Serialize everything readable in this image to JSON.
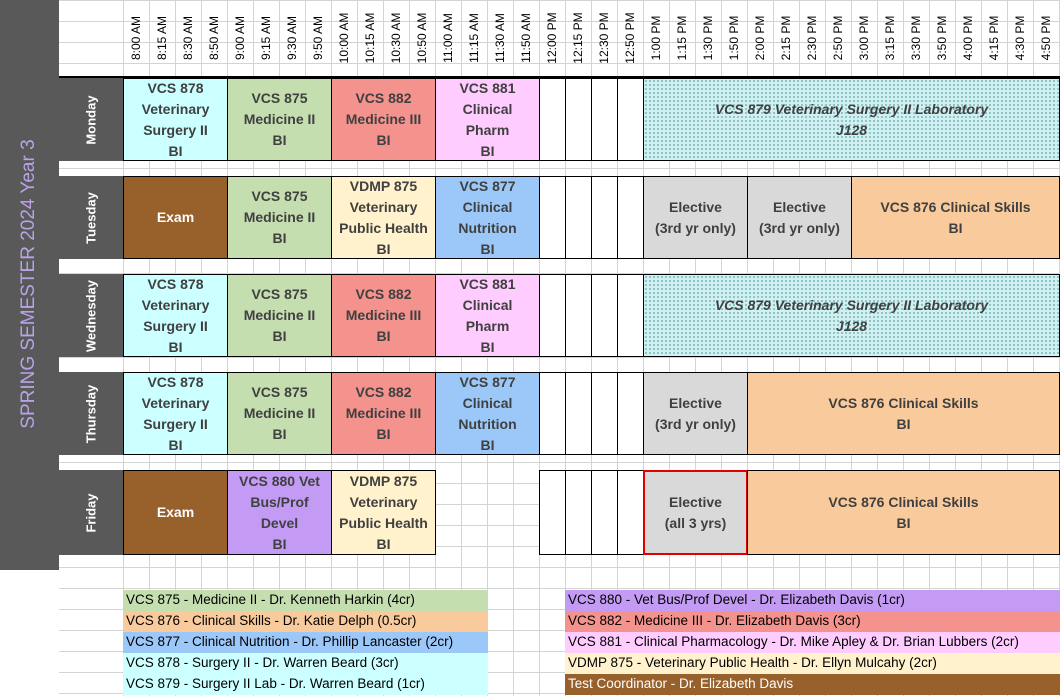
{
  "semester_title": "SPRING SEMESTER 2024 Year 3",
  "times": [
    "8:00 AM",
    "8:15 AM",
    "8:30 AM",
    "8:50 AM",
    "9:00 AM",
    "9:15 AM",
    "9:30 AM",
    "9:50 AM",
    "10:00 AM",
    "10:15 AM",
    "10:30 AM",
    "10:50 AM",
    "11:00 AM",
    "11:15 AM",
    "11:30 AM",
    "11:50 AM",
    "12:00 PM",
    "12:15 PM",
    "12:30 PM",
    "12:50 PM",
    "1:00 PM",
    "1:15 PM",
    "1:30 PM",
    "1:50 PM",
    "2:00 PM",
    "2:15 PM",
    "2:30 PM",
    "2:50 PM",
    "3:00 PM",
    "3:15 PM",
    "3:30 PM",
    "3:50 PM",
    "4:00 PM",
    "4:15 PM",
    "4:30 PM",
    "4:50 PM"
  ],
  "days": [
    "Monday",
    "Tuesday",
    "Wednesday",
    "Thursday",
    "Friday"
  ],
  "colors": {
    "surgery": "#ccffff",
    "medicine2": "#c4deb0",
    "medicine3": "#f4928d",
    "pharm": "#ffccff",
    "nutrition": "#9bc8f8",
    "exam": "#98602b",
    "publichealth": "#fff2cc",
    "elective": "#d9d9d9",
    "clinical": "#f9cb9c",
    "lab": "#d0f0f2",
    "vetbus": "#c39bf4"
  },
  "schedule": {
    "monday": {
      "c1": "VCS 878\nVeterinary\nSurgery II\nBI",
      "c2": "VCS 875\nMedicine II\nBI",
      "c3": "VCS 882\nMedicine III\nBI",
      "c4": "VCS 881\nClinical\nPharm\nBI",
      "lab": "VCS 879 Veterinary Surgery II Laboratory\nJ128"
    },
    "tuesday": {
      "c1": "Exam",
      "c2": "VCS 875\nMedicine II\nBI",
      "c3": "VDMP 875\nVeterinary\nPublic Health\nBI",
      "c4": "VCS 877\nClinical\nNutrition\nBI",
      "e1": "Elective\n(3rd yr only)",
      "e2": "Elective\n(3rd yr only)",
      "cs": "VCS 876 Clinical Skills\nBI"
    },
    "wednesday": {
      "c1": "VCS 878\nVeterinary\nSurgery II\nBI",
      "c2": "VCS 875\nMedicine II\nBI",
      "c3": "VCS 882\nMedicine III\nBI",
      "c4": "VCS 881\nClinical\nPharm\nBI",
      "lab": "VCS 879 Veterinary Surgery II Laboratory\nJ128"
    },
    "thursday": {
      "c1": "VCS 878\nVeterinary\nSurgery II\nBI",
      "c2": "VCS 875\nMedicine II\nBI",
      "c3": "VCS 882\nMedicine III\nBI",
      "c4": "VCS 877\nClinical\nNutrition\nBI",
      "e1": "Elective\n(3rd yr only)",
      "cs": "VCS 876 Clinical Skills\nBI"
    },
    "friday": {
      "c1": "Exam",
      "c2": "VCS 880  Vet\nBus/Prof\nDevel\nBI",
      "c3": "VDMP 875\nVeterinary\nPublic Health\nBI",
      "e1": "Elective\n(all 3 yrs)",
      "cs": "VCS 876 Clinical Skills\nBI"
    }
  },
  "legend_left": [
    "VCS 875 - Medicine II - Dr. Kenneth Harkin (4cr)",
    "VCS 876 - Clinical Skills - Dr. Katie Delph (0.5cr)",
    "VCS 877 - Clinical Nutrition - Dr. Phillip Lancaster (2cr)",
    "VCS 878 - Surgery II - Dr. Warren Beard (3cr)",
    "VCS 879 - Surgery II Lab - Dr. Warren Beard (1cr)"
  ],
  "legend_right": [
    "VCS 880 - Vet Bus/Prof Devel - Dr. Elizabeth Davis (1cr)",
    "VCS 882 - Medicine III - Dr. Elizabeth Davis (3cr)",
    "VCS 881 - Clinical Pharmacology - Dr. Mike Apley & Dr.  Brian Lubbers (2cr)",
    "VDMP 875 - Veterinary Public Health - Dr. Ellyn Mulcahy (2cr)",
    "Test Coordinator - Dr. Elizabeth Davis"
  ]
}
